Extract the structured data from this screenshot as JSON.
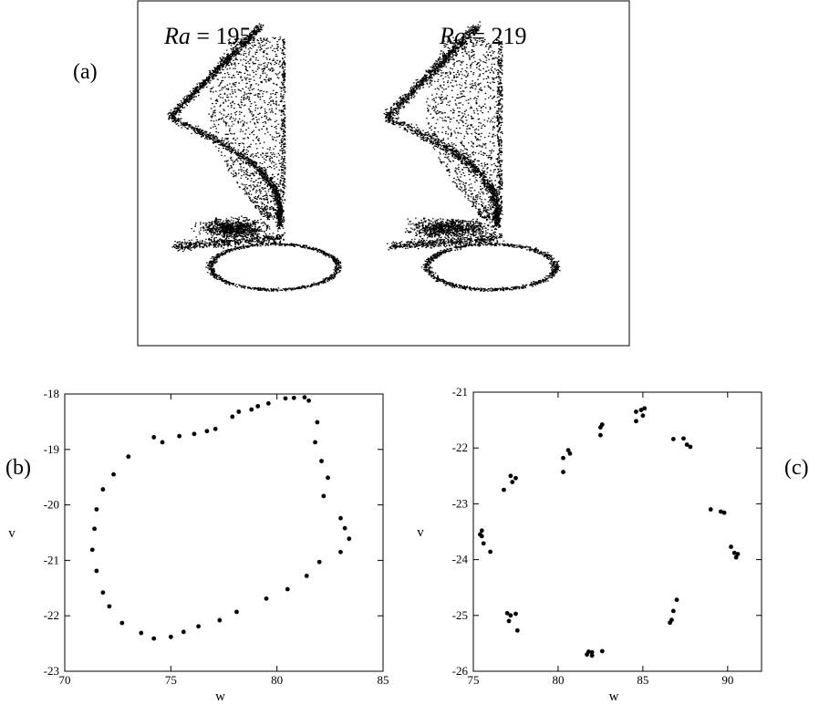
{
  "panel_labels": {
    "a": "(a)",
    "b": "(b)",
    "c": "(c)"
  },
  "panel_a": {
    "left": {
      "var": "Ra",
      "rest": " = 195"
    },
    "right": {
      "var": "Ra",
      "rest": " = 219"
    }
  },
  "colors": {
    "ink": "#000000",
    "background": "#ffffff"
  },
  "chart_data": [
    {
      "type": "scatter",
      "panel": "(b)",
      "xlabel": "w",
      "ylabel": "v",
      "xlim": [
        70,
        85
      ],
      "ylim": [
        -23,
        -18
      ],
      "xticks": [
        70,
        75,
        80,
        85
      ],
      "yticks": [
        -18,
        -19,
        -20,
        -21,
        -22,
        -23
      ],
      "grid": false,
      "points": [
        [
          80.8,
          -18.07
        ],
        [
          80.4,
          -18.08
        ],
        [
          81.3,
          -18.06
        ],
        [
          81.5,
          -18.12
        ],
        [
          79.6,
          -18.17
        ],
        [
          79.1,
          -18.22
        ],
        [
          78.8,
          -18.28
        ],
        [
          78.2,
          -18.32
        ],
        [
          77.9,
          -18.41
        ],
        [
          77.1,
          -18.63
        ],
        [
          76.7,
          -18.67
        ],
        [
          76.1,
          -18.72
        ],
        [
          75.4,
          -18.76
        ],
        [
          74.2,
          -18.78
        ],
        [
          74.6,
          -18.87
        ],
        [
          73.0,
          -19.13
        ],
        [
          72.3,
          -19.45
        ],
        [
          71.8,
          -19.72
        ],
        [
          71.5,
          -20.08
        ],
        [
          71.4,
          -20.43
        ],
        [
          71.3,
          -20.81
        ],
        [
          71.5,
          -21.19
        ],
        [
          71.8,
          -21.58
        ],
        [
          72.1,
          -21.83
        ],
        [
          72.7,
          -22.13
        ],
        [
          73.6,
          -22.31
        ],
        [
          74.2,
          -22.41
        ],
        [
          75.0,
          -22.38
        ],
        [
          75.6,
          -22.29
        ],
        [
          76.3,
          -22.19
        ],
        [
          77.3,
          -22.08
        ],
        [
          78.1,
          -21.93
        ],
        [
          79.5,
          -21.69
        ],
        [
          80.5,
          -21.52
        ],
        [
          81.4,
          -21.28
        ],
        [
          82.0,
          -21.03
        ],
        [
          83.0,
          -20.85
        ],
        [
          83.4,
          -20.61
        ],
        [
          83.2,
          -20.42
        ],
        [
          83.0,
          -20.24
        ],
        [
          82.2,
          -19.84
        ],
        [
          82.4,
          -19.51
        ],
        [
          82.1,
          -19.21
        ],
        [
          81.8,
          -18.87
        ],
        [
          81.9,
          -18.51
        ]
      ]
    },
    {
      "type": "scatter",
      "panel": "(c)",
      "xlabel": "w",
      "ylabel": "v",
      "xlim": [
        75,
        92
      ],
      "ylim": [
        -26,
        -21
      ],
      "xticks": [
        75,
        80,
        85,
        90
      ],
      "yticks": [
        -21,
        -22,
        -23,
        -24,
        -25,
        -26
      ],
      "grid": false,
      "points": [
        [
          84.9,
          -21.32
        ],
        [
          85.1,
          -21.29
        ],
        [
          84.6,
          -21.35
        ],
        [
          85.0,
          -21.42
        ],
        [
          84.6,
          -21.52
        ],
        [
          82.6,
          -21.58
        ],
        [
          82.5,
          -21.63
        ],
        [
          82.5,
          -21.77
        ],
        [
          80.6,
          -22.04
        ],
        [
          80.7,
          -22.1
        ],
        [
          80.3,
          -22.18
        ],
        [
          80.3,
          -22.43
        ],
        [
          87.4,
          -21.83
        ],
        [
          86.8,
          -21.84
        ],
        [
          87.6,
          -21.94
        ],
        [
          87.8,
          -21.98
        ],
        [
          77.2,
          -22.5
        ],
        [
          77.5,
          -22.54
        ],
        [
          77.3,
          -22.61
        ],
        [
          76.8,
          -22.75
        ],
        [
          89.0,
          -23.1
        ],
        [
          89.6,
          -23.14
        ],
        [
          89.8,
          -23.16
        ],
        [
          75.5,
          -23.48
        ],
        [
          75.4,
          -23.55
        ],
        [
          75.5,
          -23.58
        ],
        [
          75.6,
          -23.71
        ],
        [
          76.0,
          -23.86
        ],
        [
          90.2,
          -23.77
        ],
        [
          90.4,
          -23.88
        ],
        [
          90.6,
          -23.9
        ],
        [
          90.5,
          -23.96
        ],
        [
          77.0,
          -24.96
        ],
        [
          77.5,
          -24.97
        ],
        [
          77.2,
          -25.0
        ],
        [
          77.1,
          -25.1
        ],
        [
          77.6,
          -25.27
        ],
        [
          87.0,
          -24.72
        ],
        [
          86.8,
          -24.92
        ],
        [
          86.7,
          -25.08
        ],
        [
          86.6,
          -25.13
        ],
        [
          81.8,
          -25.65
        ],
        [
          82.0,
          -25.66
        ],
        [
          82.6,
          -25.64
        ],
        [
          81.7,
          -25.7
        ],
        [
          82.0,
          -25.72
        ]
      ]
    }
  ]
}
